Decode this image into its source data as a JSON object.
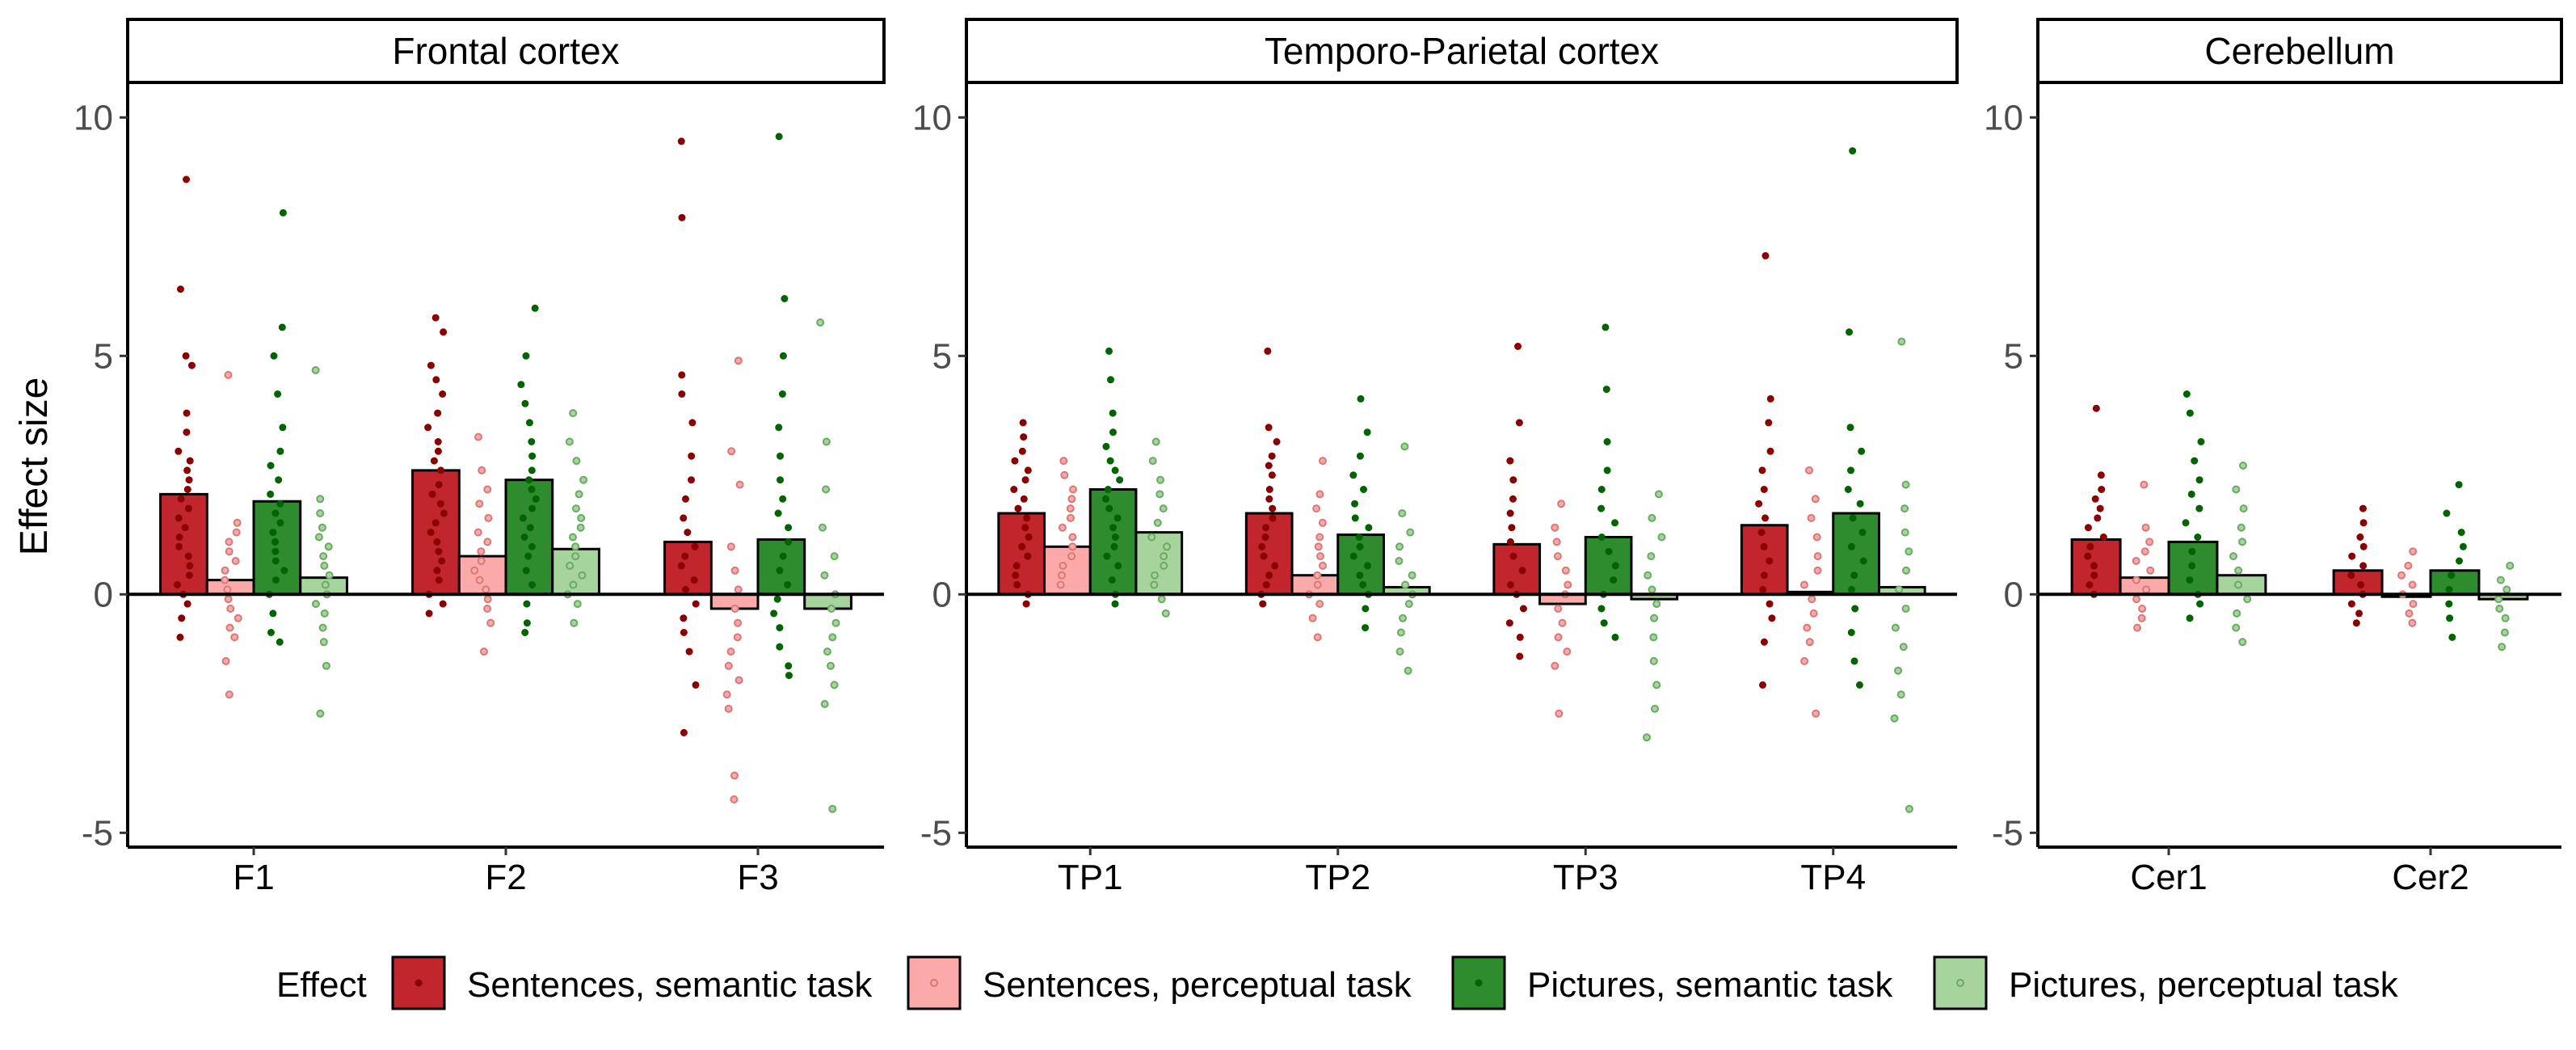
{
  "chart_data": {
    "type": "bar",
    "ylabel": "Effect size",
    "xlabel": "",
    "ylim": [
      -5.3,
      10.7
    ],
    "yticks": [
      -5,
      0,
      5,
      10
    ],
    "ytick_labels": [
      "-5",
      "0",
      "5",
      "10"
    ],
    "grid": false,
    "legend": {
      "title": "Effect",
      "position": "bottom",
      "entries": [
        "Sentences, semantic task",
        "Sentences, perceptual task",
        "Pictures, semantic task",
        "Pictures, perceptual task"
      ]
    },
    "series_colors": [
      "#c0262b",
      "#fca9a9",
      "#2e8b2e",
      "#a6d49c"
    ],
    "point_colors": [
      "#8b0000",
      "#d87878",
      "#006400",
      "#6aaa64"
    ],
    "panels": [
      {
        "title": "Frontal cortex",
        "categories": [
          "F1",
          "F2",
          "F3"
        ],
        "series": [
          {
            "name": "Sentences, semantic task",
            "values": [
              2.1,
              2.6,
              1.1
            ],
            "points": [
              [
                8.7,
                6.4,
                5.0,
                4.8,
                3.8,
                3.4,
                3.0,
                2.8,
                2.6,
                2.4,
                2.2,
                2.0,
                1.8,
                1.6,
                1.4,
                1.2,
                1.0,
                0.8,
                0.6,
                0.4,
                0.2,
                0.0,
                -0.2,
                -0.5,
                -0.9
              ],
              [
                5.8,
                5.5,
                4.8,
                4.5,
                4.2,
                3.8,
                3.5,
                3.2,
                3.0,
                2.8,
                2.6,
                2.3,
                2.1,
                1.9,
                1.7,
                1.5,
                1.3,
                1.1,
                0.9,
                0.7,
                0.5,
                0.3,
                0.0,
                -0.2,
                -0.4
              ],
              [
                9.5,
                7.9,
                4.6,
                4.2,
                3.6,
                2.9,
                2.4,
                2.0,
                1.6,
                1.3,
                1.0,
                0.8,
                0.6,
                0.3,
                0.1,
                -0.2,
                -0.5,
                -0.8,
                -1.2,
                -1.9,
                -2.9
              ]
            ]
          },
          {
            "name": "Sentences, perceptual task",
            "values": [
              0.3,
              0.8,
              -0.3
            ],
            "points": [
              [
                4.6,
                1.5,
                1.3,
                1.1,
                0.9,
                0.7,
                0.5,
                0.3,
                0.1,
                -0.1,
                -0.3,
                -0.5,
                -0.7,
                -0.9,
                -1.4,
                -2.1
              ],
              [
                3.3,
                2.6,
                2.2,
                1.9,
                1.6,
                1.3,
                1.1,
                0.9,
                0.7,
                0.5,
                0.3,
                0.1,
                -0.1,
                -0.3,
                -0.6,
                -1.2
              ],
              [
                4.9,
                3.0,
                2.3,
                1.0,
                0.5,
                0.1,
                -0.3,
                -0.6,
                -0.9,
                -1.2,
                -1.5,
                -1.8,
                -2.1,
                -2.4,
                -3.8,
                -4.3
              ]
            ]
          },
          {
            "name": "Pictures, semantic task",
            "values": [
              1.95,
              2.4,
              1.15
            ],
            "points": [
              [
                8.0,
                5.6,
                5.0,
                4.2,
                3.5,
                3.0,
                2.7,
                2.4,
                2.1,
                1.9,
                1.7,
                1.5,
                1.3,
                1.1,
                0.9,
                0.7,
                0.5,
                0.3,
                0.0,
                -0.4,
                -0.8,
                -1.0
              ],
              [
                6.0,
                5.0,
                4.4,
                4.0,
                3.6,
                3.2,
                2.9,
                2.6,
                2.4,
                2.2,
                2.0,
                1.8,
                1.6,
                1.4,
                1.2,
                1.0,
                0.8,
                0.5,
                0.2,
                -0.2,
                -0.6,
                -0.8
              ],
              [
                9.6,
                6.2,
                5.0,
                4.2,
                3.5,
                2.9,
                2.4,
                2.0,
                1.7,
                1.4,
                1.1,
                0.8,
                0.5,
                0.2,
                -0.1,
                -0.4,
                -0.7,
                -1.1,
                -1.5,
                -1.7
              ]
            ]
          },
          {
            "name": "Pictures, perceptual task",
            "values": [
              0.35,
              0.95,
              -0.3
            ],
            "points": [
              [
                4.7,
                2.0,
                1.7,
                1.4,
                1.2,
                1.0,
                0.8,
                0.6,
                0.4,
                0.2,
                0.0,
                -0.2,
                -0.4,
                -0.7,
                -1.0,
                -1.5,
                -2.5
              ],
              [
                3.8,
                3.2,
                2.8,
                2.4,
                2.1,
                1.8,
                1.6,
                1.4,
                1.2,
                1.0,
                0.8,
                0.6,
                0.4,
                0.2,
                0.0,
                -0.2,
                -0.6
              ],
              [
                5.7,
                3.2,
                2.2,
                1.4,
                0.8,
                0.4,
                0.0,
                -0.3,
                -0.6,
                -0.9,
                -1.2,
                -1.5,
                -1.9,
                -2.3,
                -4.5
              ]
            ]
          }
        ]
      },
      {
        "title": "Temporo-Parietal cortex",
        "categories": [
          "TP1",
          "TP2",
          "TP3",
          "TP4"
        ],
        "series": [
          {
            "name": "Sentences, semantic task",
            "values": [
              1.7,
              1.7,
              1.05,
              1.45
            ],
            "points": [
              [
                3.6,
                3.3,
                3.0,
                2.8,
                2.6,
                2.4,
                2.2,
                2.0,
                1.8,
                1.6,
                1.4,
                1.2,
                1.0,
                0.8,
                0.6,
                0.4,
                0.2,
                0.0,
                -0.2
              ],
              [
                5.1,
                3.5,
                3.2,
                2.9,
                2.7,
                2.5,
                2.2,
                2.0,
                1.8,
                1.6,
                1.4,
                1.2,
                1.0,
                0.8,
                0.6,
                0.4,
                0.2,
                0.0,
                -0.2
              ],
              [
                5.2,
                3.6,
                2.8,
                2.4,
                2.0,
                1.7,
                1.4,
                1.1,
                0.8,
                0.5,
                0.2,
                0.0,
                -0.3,
                -0.6,
                -0.9,
                -1.3
              ],
              [
                7.1,
                4.1,
                3.6,
                3.0,
                2.6,
                2.2,
                1.9,
                1.6,
                1.3,
                1.0,
                0.7,
                0.4,
                0.1,
                -0.2,
                -0.5,
                -1.0,
                -1.9
              ]
            ]
          },
          {
            "name": "Sentences, perceptual task",
            "values": [
              1.0,
              0.4,
              -0.2,
              0.05
            ],
            "points": [
              [
                2.8,
                2.5,
                2.2,
                2.0,
                1.8,
                1.6,
                1.4,
                1.2,
                1.0,
                0.8,
                0.6,
                0.4,
                0.2
              ],
              [
                2.8,
                2.1,
                1.8,
                1.5,
                1.2,
                1.0,
                0.8,
                0.6,
                0.4,
                0.2,
                0.0,
                -0.2,
                -0.5,
                -0.9
              ],
              [
                1.9,
                1.4,
                1.1,
                0.8,
                0.5,
                0.2,
                0.0,
                -0.3,
                -0.6,
                -0.9,
                -1.2,
                -1.5,
                -2.5
              ],
              [
                2.6,
                2.0,
                1.6,
                1.2,
                0.8,
                0.5,
                0.2,
                -0.1,
                -0.4,
                -0.7,
                -1.0,
                -1.4,
                -2.5
              ]
            ]
          },
          {
            "name": "Pictures, semantic task",
            "values": [
              2.2,
              1.25,
              1.2,
              1.7
            ],
            "points": [
              [
                5.1,
                4.5,
                3.8,
                3.4,
                3.1,
                2.8,
                2.6,
                2.4,
                2.2,
                2.0,
                1.8,
                1.6,
                1.4,
                1.2,
                1.0,
                0.8,
                0.6,
                0.3,
                0.0,
                -0.2
              ],
              [
                4.1,
                3.4,
                2.9,
                2.5,
                2.2,
                1.9,
                1.6,
                1.4,
                1.2,
                1.0,
                0.8,
                0.6,
                0.4,
                0.2,
                0.0,
                -0.3,
                -0.7
              ],
              [
                5.6,
                4.3,
                3.2,
                2.6,
                2.2,
                1.8,
                1.5,
                1.2,
                0.9,
                0.6,
                0.3,
                0.0,
                -0.3,
                -0.6,
                -0.9
              ],
              [
                9.3,
                5.5,
                3.5,
                3.0,
                2.6,
                2.2,
                1.9,
                1.6,
                1.3,
                1.0,
                0.7,
                0.4,
                0.1,
                -0.3,
                -0.8,
                -1.4,
                -1.9
              ]
            ]
          },
          {
            "name": "Pictures, perceptual task",
            "values": [
              1.3,
              0.15,
              -0.1,
              0.15
            ],
            "points": [
              [
                3.2,
                2.8,
                2.4,
                2.1,
                1.8,
                1.5,
                1.2,
                1.0,
                0.8,
                0.6,
                0.4,
                0.2,
                -0.1,
                -0.4
              ],
              [
                3.1,
                1.7,
                1.3,
                1.0,
                0.7,
                0.4,
                0.2,
                0.0,
                -0.2,
                -0.5,
                -0.8,
                -1.2,
                -1.6
              ],
              [
                2.1,
                1.6,
                1.2,
                0.8,
                0.4,
                0.1,
                -0.2,
                -0.5,
                -0.9,
                -1.4,
                -1.9,
                -2.4,
                -3.0
              ],
              [
                5.3,
                2.3,
                1.8,
                1.3,
                0.9,
                0.5,
                0.1,
                -0.3,
                -0.7,
                -1.1,
                -1.6,
                -2.1,
                -2.6,
                -4.5
              ]
            ]
          }
        ]
      },
      {
        "title": "Cerebellum",
        "categories": [
          "Cer1",
          "Cer2"
        ],
        "series": [
          {
            "name": "Sentences, semantic task",
            "values": [
              1.15,
              0.5
            ],
            "points": [
              [
                3.9,
                2.5,
                2.2,
                2.0,
                1.8,
                1.6,
                1.4,
                1.2,
                1.0,
                0.8,
                0.6,
                0.4,
                0.2,
                0.0
              ],
              [
                1.8,
                1.5,
                1.2,
                1.0,
                0.8,
                0.6,
                0.4,
                0.2,
                0.0,
                -0.2,
                -0.4,
                -0.6
              ]
            ]
          },
          {
            "name": "Sentences, perceptual task",
            "values": [
              0.35,
              -0.05
            ],
            "points": [
              [
                2.3,
                1.4,
                1.1,
                0.9,
                0.7,
                0.5,
                0.3,
                0.1,
                -0.1,
                -0.3,
                -0.5,
                -0.7
              ],
              [
                0.9,
                0.6,
                0.4,
                0.2,
                0.0,
                -0.2,
                -0.4,
                -0.6
              ]
            ]
          },
          {
            "name": "Pictures, semantic task",
            "values": [
              1.1,
              0.5
            ],
            "points": [
              [
                4.2,
                3.8,
                3.2,
                2.8,
                2.4,
                2.1,
                1.8,
                1.5,
                1.2,
                0.9,
                0.6,
                0.3,
                0.0,
                -0.2,
                -0.5
              ],
              [
                2.3,
                1.7,
                1.3,
                1.0,
                0.7,
                0.4,
                0.1,
                -0.2,
                -0.5,
                -0.9
              ]
            ]
          },
          {
            "name": "Pictures, perceptual task",
            "values": [
              0.4,
              -0.1
            ],
            "points": [
              [
                2.7,
                2.2,
                1.8,
                1.4,
                1.1,
                0.8,
                0.5,
                0.2,
                -0.1,
                -0.4,
                -0.7,
                -1.0
              ],
              [
                0.6,
                0.3,
                0.1,
                -0.1,
                -0.3,
                -0.5,
                -0.8,
                -1.1
              ]
            ]
          }
        ]
      }
    ]
  }
}
